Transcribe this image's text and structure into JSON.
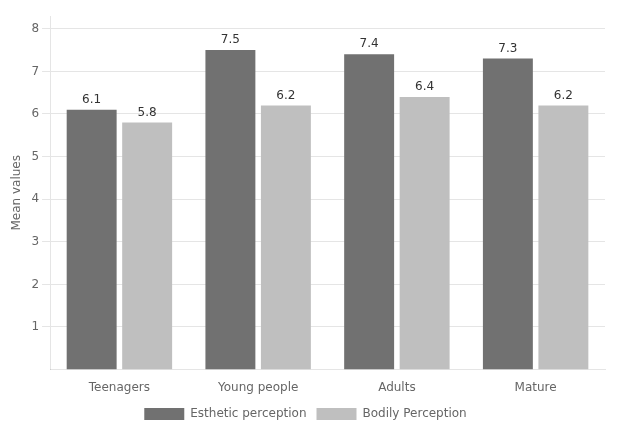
{
  "chart_data": {
    "type": "bar",
    "categories": [
      "Teenagers",
      "Young people",
      "Adults",
      "Mature"
    ],
    "series": [
      {
        "name": "Esthetic perception",
        "color": "#717171",
        "values": [
          6.1,
          7.5,
          7.4,
          7.3
        ]
      },
      {
        "name": "Bodily Perception",
        "color": "#bfbfbf",
        "values": [
          5.8,
          6.2,
          6.4,
          6.2
        ]
      }
    ],
    "ylabel": "Mean values",
    "ylim": [
      0,
      8.3
    ],
    "yticks": [
      1,
      2,
      3,
      4,
      5,
      6,
      7,
      8
    ],
    "grid": true,
    "legend": "bottom",
    "data_labels": true
  }
}
